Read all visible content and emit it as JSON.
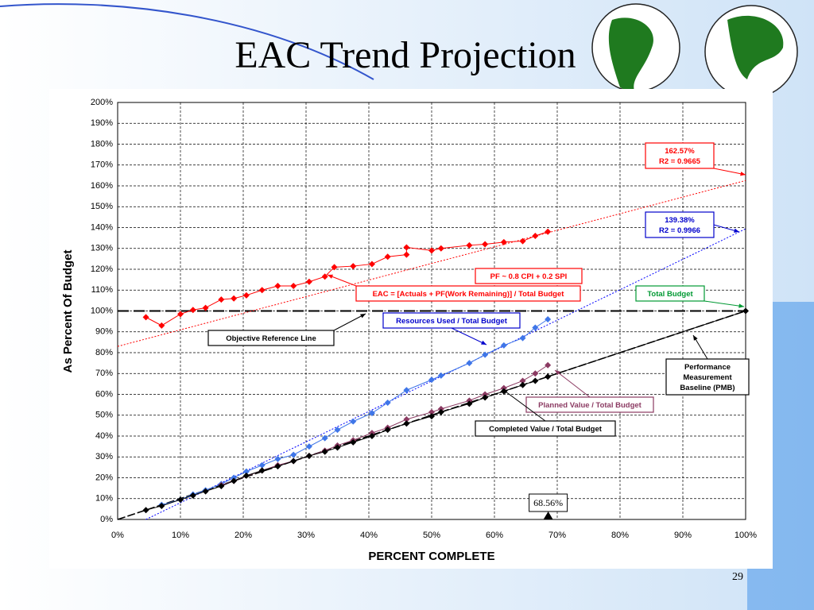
{
  "title": "EAC Trend Projection",
  "page_number": "29",
  "chart_data": {
    "type": "scatter",
    "ylabel": "As Percent Of Budget",
    "xlabel": "PERCENT COMPLETE",
    "xlim": [
      0,
      100
    ],
    "ylim": [
      0,
      200
    ],
    "grid": true,
    "xticks": [
      {
        "value": 0,
        "label": "0%"
      },
      {
        "value": 10,
        "label": "10%"
      },
      {
        "value": 20,
        "label": "20%"
      },
      {
        "value": 30,
        "label": "30%"
      },
      {
        "value": 40,
        "label": "40%"
      },
      {
        "value": 50,
        "label": "50%"
      },
      {
        "value": 60,
        "label": "60%"
      },
      {
        "value": 70,
        "label": "70%"
      },
      {
        "value": 80,
        "label": "80%"
      },
      {
        "value": 90,
        "label": "90%"
      },
      {
        "value": 100,
        "label": "100%"
      }
    ],
    "yticks": [
      {
        "value": 0,
        "label": "0%"
      },
      {
        "value": 10,
        "label": "10%"
      },
      {
        "value": 20,
        "label": "20%"
      },
      {
        "value": 30,
        "label": "30%"
      },
      {
        "value": 40,
        "label": "40%"
      },
      {
        "value": 50,
        "label": "50%"
      },
      {
        "value": 60,
        "label": "60%"
      },
      {
        "value": 70,
        "label": "70%"
      },
      {
        "value": 80,
        "label": "80%"
      },
      {
        "value": 90,
        "label": "90%"
      },
      {
        "value": 100,
        "label": "100%"
      },
      {
        "value": 110,
        "label": "110%"
      },
      {
        "value": 120,
        "label": "120%"
      },
      {
        "value": 130,
        "label": "130%"
      },
      {
        "value": 140,
        "label": "140%"
      },
      {
        "value": 150,
        "label": "150%"
      },
      {
        "value": 160,
        "label": "160%"
      },
      {
        "value": 170,
        "label": "170%"
      },
      {
        "value": 180,
        "label": "180%"
      },
      {
        "value": 190,
        "label": "190%"
      },
      {
        "value": 200,
        "label": "200%"
      }
    ],
    "series": [
      {
        "color": "#ff0000",
        "x": [
          4.5,
          7,
          10,
          12,
          14,
          16.5,
          18.5,
          20.5,
          23,
          25.5,
          28,
          30.5,
          33,
          34.5,
          37.5,
          40.5,
          43,
          46,
          46,
          50,
          51.5,
          56,
          58.5,
          61.5,
          64.5,
          66.5,
          68.5
        ],
        "values": [
          97,
          93,
          98.5,
          100.5,
          101.5,
          105.5,
          106,
          107.5,
          110,
          112,
          112,
          114,
          116.5,
          121,
          121.5,
          122.5,
          126,
          127,
          130.5,
          129,
          130,
          131.5,
          132,
          133,
          133.5,
          136,
          138
        ]
      },
      {
        "color": "#3f76e8",
        "x": [
          7,
          10,
          12,
          14,
          16.5,
          18.5,
          20.5,
          23,
          25.5,
          28,
          30.5,
          33,
          35,
          37.5,
          40.5,
          43,
          46,
          50,
          51.5,
          56,
          58.5,
          61.5,
          64.5,
          66.5,
          68.5
        ],
        "values": [
          7,
          9.5,
          12,
          14,
          17,
          20,
          23,
          26,
          29,
          31,
          35,
          39,
          43,
          47,
          51,
          56,
          62,
          67,
          69,
          75,
          79,
          83.5,
          87,
          92,
          96
        ]
      },
      {
        "color": "#8b3a62",
        "x": [
          16.5,
          18.5,
          23,
          25.5,
          28,
          30.5,
          33,
          35,
          37.5,
          40.5,
          43,
          46,
          50,
          51.5,
          56,
          58.5,
          61.5,
          64.5,
          66.5,
          68.5
        ],
        "values": [
          16.5,
          18.5,
          23.5,
          26,
          28,
          30.5,
          33,
          35.5,
          38,
          41.5,
          44,
          48,
          51.5,
          53,
          57,
          60,
          63,
          66.5,
          70,
          74
        ]
      },
      {
        "color": "#000000",
        "x": [
          4.5,
          7,
          10,
          12,
          14,
          16.5,
          18.5,
          20.5,
          23,
          25.5,
          28,
          30.5,
          33,
          35,
          37.5,
          40.5,
          43,
          46,
          50,
          51.5,
          56,
          58.5,
          61.5,
          64.5,
          66.5,
          68.5,
          100
        ],
        "values": [
          4.5,
          6.5,
          9.5,
          11.5,
          13.5,
          16,
          18.5,
          21,
          23.5,
          25.5,
          28,
          30.5,
          32.5,
          34.5,
          37,
          40,
          43,
          46,
          49.5,
          51.5,
          55.5,
          58.5,
          61.5,
          64.5,
          66.5,
          68.5,
          100
        ]
      }
    ],
    "trendlines": [
      {
        "color": "#ff0000",
        "x": [
          0,
          100
        ],
        "values": [
          83,
          162.57
        ]
      },
      {
        "color": "#0000ff",
        "x": [
          4.5,
          100
        ],
        "values": [
          0,
          139.38
        ]
      },
      {
        "color": "#000000",
        "x": [
          0,
          100
        ],
        "values": [
          0,
          100
        ]
      }
    ],
    "reference_line": 100,
    "current_complete": 68.56,
    "current_complete_label": "68.56%",
    "annotations": [
      {
        "lines": [
          "162.57%",
          "R2 = 0.9665"
        ],
        "color": "#ff0000"
      },
      {
        "lines": [
          "139.38%",
          "R2 = 0.9966"
        ],
        "color": "#0000cc"
      },
      {
        "lines": [
          "Total Budget"
        ],
        "color": "#009933"
      },
      {
        "lines": [
          "PF ~ 0.8 CPI + 0.2 SPI"
        ],
        "color": "#ff0000"
      },
      {
        "lines": [
          "EAC = [Actuals + PF(Work Remaining)] / Total Budget"
        ],
        "color": "#ff0000"
      },
      {
        "lines": [
          "Resources Used / Total Budget"
        ],
        "color": "#0000cc"
      },
      {
        "lines": [
          "Objective Reference Line"
        ],
        "color": "#000000"
      },
      {
        "lines": [
          "Performance",
          "Measurement",
          "Baseline (PMB)"
        ],
        "color": "#000000"
      },
      {
        "lines": [
          "Planned Value / Total Budget"
        ],
        "color": "#8b3a62"
      },
      {
        "lines": [
          "Completed Value / Total Budget"
        ],
        "color": "#000000"
      }
    ]
  }
}
